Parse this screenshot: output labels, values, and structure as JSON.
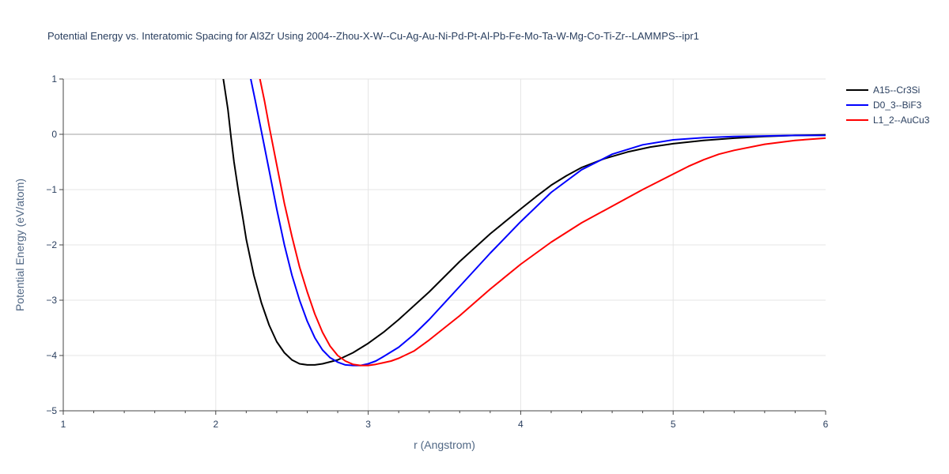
{
  "chart_data": {
    "type": "line",
    "title": "Potential Energy vs. Interatomic Spacing for Al3Zr Using 2004--Zhou-X-W--Cu-Ag-Au-Ni-Pd-Pt-Al-Pb-Fe-Mo-Ta-W-Mg-Co-Ti-Zr--LAMMPS--ipr1",
    "xlabel": "r (Angstrom)",
    "ylabel": "Potential Energy (eV/atom)",
    "xlim": [
      1,
      6
    ],
    "ylim": [
      -5,
      1
    ],
    "xticks": [
      1,
      2,
      3,
      4,
      5,
      6
    ],
    "yticks": [
      -5,
      -4,
      -3,
      -2,
      -1,
      0,
      1
    ],
    "xtick_labels": [
      "1",
      "2",
      "3",
      "4",
      "5",
      "6"
    ],
    "ytick_labels": [
      "−5",
      "−4",
      "−3",
      "−2",
      "−1",
      "0",
      "1"
    ],
    "grid": true,
    "legend_position": "top-right",
    "series": [
      {
        "name": "A15--Cr3Si",
        "color": "#000000",
        "x": [
          2.05,
          2.08,
          2.1,
          2.12,
          2.15,
          2.18,
          2.2,
          2.25,
          2.3,
          2.35,
          2.4,
          2.45,
          2.5,
          2.55,
          2.6,
          2.65,
          2.7,
          2.8,
          2.9,
          3.0,
          3.1,
          3.2,
          3.4,
          3.6,
          3.8,
          4.0,
          4.1,
          4.2,
          4.3,
          4.4,
          4.55,
          4.7,
          4.85,
          5.0,
          5.2,
          5.4,
          5.6,
          5.8,
          6.0
        ],
        "y": [
          1.0,
          0.45,
          -0.05,
          -0.5,
          -1.05,
          -1.55,
          -1.9,
          -2.55,
          -3.05,
          -3.45,
          -3.75,
          -3.95,
          -4.08,
          -4.15,
          -4.17,
          -4.17,
          -4.15,
          -4.08,
          -3.95,
          -3.78,
          -3.58,
          -3.35,
          -2.85,
          -2.3,
          -1.8,
          -1.35,
          -1.13,
          -0.92,
          -0.75,
          -0.6,
          -0.44,
          -0.32,
          -0.23,
          -0.17,
          -0.11,
          -0.07,
          -0.04,
          -0.02,
          -0.01
        ]
      },
      {
        "name": "D0_3--BiF3",
        "color": "#0000ff",
        "x": [
          2.23,
          2.26,
          2.3,
          2.35,
          2.4,
          2.45,
          2.5,
          2.55,
          2.6,
          2.65,
          2.7,
          2.75,
          2.8,
          2.85,
          2.9,
          2.95,
          3.0,
          3.05,
          3.1,
          3.2,
          3.3,
          3.4,
          3.6,
          3.8,
          4.0,
          4.2,
          4.4,
          4.6,
          4.8,
          5.0,
          5.2,
          5.4,
          5.6,
          5.8,
          6.0
        ],
        "y": [
          1.0,
          0.6,
          0.05,
          -0.65,
          -1.35,
          -2.0,
          -2.55,
          -3.0,
          -3.38,
          -3.68,
          -3.9,
          -4.04,
          -4.12,
          -4.17,
          -4.18,
          -4.18,
          -4.15,
          -4.1,
          -4.02,
          -3.85,
          -3.62,
          -3.35,
          -2.75,
          -2.15,
          -1.58,
          -1.05,
          -0.64,
          -0.36,
          -0.19,
          -0.1,
          -0.06,
          -0.04,
          -0.03,
          -0.02,
          -0.02
        ]
      },
      {
        "name": "L1_2--AuCu3",
        "color": "#ff0000",
        "x": [
          2.29,
          2.32,
          2.35,
          2.4,
          2.45,
          2.5,
          2.55,
          2.6,
          2.65,
          2.7,
          2.75,
          2.8,
          2.85,
          2.9,
          2.95,
          3.0,
          3.05,
          3.1,
          3.15,
          3.2,
          3.3,
          3.4,
          3.6,
          3.8,
          4.0,
          4.2,
          4.4,
          4.6,
          4.8,
          5.0,
          5.1,
          5.2,
          5.3,
          5.4,
          5.6,
          5.8,
          6.0
        ],
        "y": [
          1.0,
          0.6,
          0.15,
          -0.55,
          -1.25,
          -1.85,
          -2.4,
          -2.85,
          -3.25,
          -3.58,
          -3.83,
          -4.0,
          -4.1,
          -4.16,
          -4.18,
          -4.18,
          -4.16,
          -4.13,
          -4.1,
          -4.05,
          -3.92,
          -3.72,
          -3.28,
          -2.8,
          -2.35,
          -1.95,
          -1.6,
          -1.3,
          -1.0,
          -0.72,
          -0.58,
          -0.46,
          -0.36,
          -0.29,
          -0.18,
          -0.11,
          -0.07
        ]
      }
    ]
  }
}
